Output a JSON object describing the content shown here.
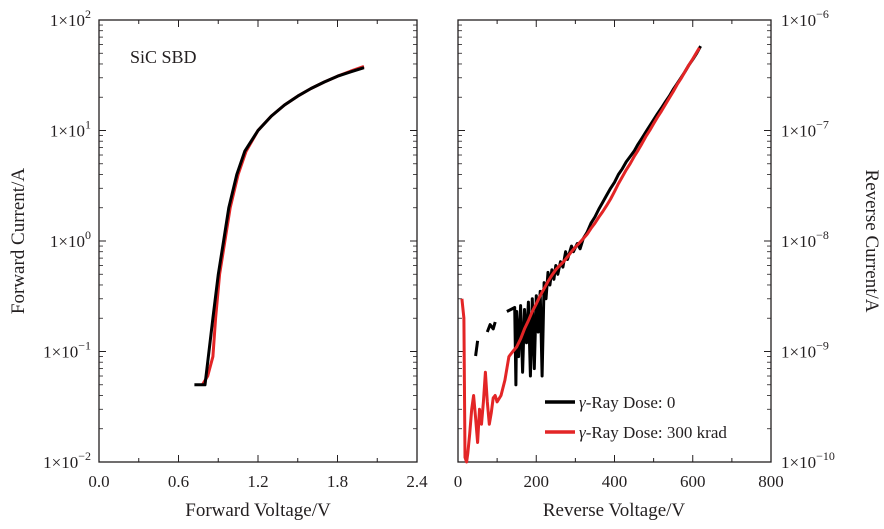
{
  "chart_data": [
    {
      "type": "line",
      "title": "",
      "annotation": "SiC SBD",
      "xlabel": "Forward Voltage/V",
      "ylabel": "Forward Current/A",
      "xlim": [
        0.0,
        2.4
      ],
      "ylim_log10": [
        -2,
        2
      ],
      "yscale": "log",
      "x_ticks": [
        0.0,
        0.6,
        1.2,
        1.8,
        2.4
      ],
      "x_tick_labels": [
        "0.0",
        "0.6",
        "1.2",
        "1.8",
        "2.4"
      ],
      "y_ticks_log10": [
        -2,
        -1,
        0,
        1,
        2
      ],
      "y_tick_labels": [
        {
          "base": "1×10",
          "exp": "−2"
        },
        {
          "base": "1×10",
          "exp": "−1"
        },
        {
          "base": "1×10",
          "exp": "0"
        },
        {
          "base": "1×10",
          "exp": "1"
        },
        {
          "base": "1×10",
          "exp": "2"
        }
      ],
      "series": [
        {
          "name": "γ-Ray Dose: 0",
          "color": "#000000",
          "points": [
            [
              0.72,
              0.05
            ],
            [
              0.8,
              0.05
            ],
            [
              0.82,
              0.08
            ],
            [
              0.86,
              0.2
            ],
            [
              0.9,
              0.5
            ],
            [
              0.94,
              1.0
            ],
            [
              0.98,
              2.0
            ],
            [
              1.04,
              4.0
            ],
            [
              1.1,
              6.5
            ],
            [
              1.2,
              10.0
            ],
            [
              1.3,
              13.5
            ],
            [
              1.4,
              17.0
            ],
            [
              1.5,
              20.5
            ],
            [
              1.6,
              24.0
            ],
            [
              1.7,
              27.5
            ],
            [
              1.8,
              31.0
            ],
            [
              1.9,
              34.0
            ],
            [
              2.0,
              37.0
            ]
          ]
        },
        {
          "name": "γ-Ray Dose: 300 krad",
          "color": "#e32526",
          "points": [
            [
              0.78,
              0.05
            ],
            [
              0.82,
              0.06
            ],
            [
              0.86,
              0.09
            ],
            [
              0.88,
              0.2
            ],
            [
              0.91,
              0.5
            ],
            [
              0.95,
              1.0
            ],
            [
              0.99,
              2.0
            ],
            [
              1.05,
              4.0
            ],
            [
              1.11,
              6.5
            ],
            [
              1.2,
              10.0
            ],
            [
              1.3,
              13.5
            ],
            [
              1.4,
              17.0
            ],
            [
              1.5,
              20.5
            ],
            [
              1.6,
              24.0
            ],
            [
              1.7,
              27.5
            ],
            [
              1.8,
              31.0
            ],
            [
              1.9,
              34.5
            ],
            [
              2.0,
              38.0
            ]
          ]
        }
      ]
    },
    {
      "type": "line",
      "title": "",
      "xlabel": "Reverse Voltage/V",
      "ylabel": "Reverse Current/A",
      "xlim": [
        0,
        800
      ],
      "ylim_log10": [
        -10,
        -6
      ],
      "yscale": "log",
      "x_ticks": [
        0,
        200,
        400,
        600,
        800
      ],
      "x_tick_labels": [
        "0",
        "200",
        "400",
        "600",
        "800"
      ],
      "y_ticks_log10": [
        -10,
        -9,
        -8,
        -7,
        -6
      ],
      "y_tick_labels": [
        {
          "base": "1×10",
          "exp": "−10"
        },
        {
          "base": "1×10",
          "exp": "−9"
        },
        {
          "base": "1×10",
          "exp": "−8"
        },
        {
          "base": "1×10",
          "exp": "−7"
        },
        {
          "base": "1×10",
          "exp": "−6"
        }
      ],
      "legend": {
        "position": "lower-right",
        "entries": [
          {
            "prefix": "γ",
            "text": "-Ray Dose: 0",
            "color": "#000000"
          },
          {
            "prefix": "γ",
            "text": "-Ray Dose: 300 krad",
            "color": "#e32526"
          }
        ]
      },
      "series": [
        {
          "name": "γ-Ray Dose: 0",
          "color": "#000000",
          "segments": [
            [
              [
                45,
                9.1e-10
              ],
              [
                50,
                1.25e-09
              ]
            ],
            [
              [
                75,
                1.5e-09
              ],
              [
                82,
                1.75e-09
              ],
              [
                90,
                1.6e-09
              ],
              [
                95,
                1.85e-09
              ]
            ],
            [
              [
                125,
                2.3e-09
              ],
              [
                140,
                2.45e-09
              ],
              [
                145,
                2.5e-09
              ],
              [
                148,
                5e-10
              ],
              [
                150,
                2.3e-09
              ],
              [
                155,
                9e-10
              ],
              [
                160,
                2.6e-09
              ],
              [
                165,
                6.5e-10
              ],
              [
                170,
                2.4e-09
              ],
              [
                175,
                1.2e-09
              ],
              [
                180,
                2.8e-09
              ],
              [
                185,
                6e-10
              ],
              [
                190,
                3e-09
              ],
              [
                195,
                7e-10
              ],
              [
                200,
                3.2e-09
              ],
              [
                205,
                1.5e-09
              ],
              [
                210,
                3.5e-09
              ],
              [
                215,
                6e-10
              ],
              [
                220,
                4.2e-09
              ],
              [
                225,
                3e-09
              ],
              [
                230,
                5.2e-09
              ],
              [
                235,
                4e-09
              ],
              [
                240,
                5.5e-09
              ],
              [
                245,
                4.5e-09
              ],
              [
                250,
                6e-09
              ],
              [
                255,
                5e-09
              ],
              [
                262,
                6.5e-09
              ],
              [
                268,
                5.8e-09
              ],
              [
                275,
                8e-09
              ],
              [
                280,
                6.8e-09
              ],
              [
                290,
                9e-09
              ],
              [
                295,
                8e-09
              ],
              [
                305,
                9.5e-09
              ],
              [
                312,
                8.5e-09
              ],
              [
                320,
                1.05e-08
              ],
              [
                330,
                1.2e-08
              ],
              [
                340,
                1.45e-08
              ],
              [
                350,
                1.65e-08
              ],
              [
                360,
                1.95e-08
              ],
              [
                370,
                2.25e-08
              ],
              [
                380,
                2.6e-08
              ],
              [
                390,
                3e-08
              ],
              [
                400,
                3.4e-08
              ],
              [
                410,
                4e-08
              ],
              [
                420,
                4.5e-08
              ],
              [
                430,
                5.2e-08
              ],
              [
                440,
                5.8e-08
              ],
              [
                450,
                6.5e-08
              ],
              [
                460,
                7.5e-08
              ],
              [
                470,
                8.5e-08
              ],
              [
                480,
                9.7e-08
              ],
              [
                490,
                1.1e-07
              ],
              [
                500,
                1.25e-07
              ],
              [
                510,
                1.42e-07
              ],
              [
                520,
                1.6e-07
              ],
              [
                530,
                1.82e-07
              ],
              [
                540,
                2.05e-07
              ],
              [
                550,
                2.35e-07
              ],
              [
                560,
                2.65e-07
              ],
              [
                570,
                3e-07
              ],
              [
                580,
                3.4e-07
              ],
              [
                590,
                3.9e-07
              ],
              [
                600,
                4.4e-07
              ],
              [
                610,
                5e-07
              ],
              [
                620,
                5.8e-07
              ]
            ]
          ]
        },
        {
          "name": "γ-Ray Dose: 300 krad",
          "color": "#e32526",
          "segments": [
            [
              [
                10,
                3e-09
              ],
              [
                15,
                2e-09
              ],
              [
                18,
                1.1e-10
              ],
              [
                22,
                1e-10
              ],
              [
                25,
                1.2e-10
              ],
              [
                30,
                1.8e-10
              ],
              [
                35,
                3e-10
              ],
              [
                40,
                4e-10
              ],
              [
                45,
                2.5e-10
              ],
              [
                50,
                1.5e-10
              ],
              [
                55,
                3e-10
              ],
              [
                60,
                2.2e-10
              ],
              [
                65,
                3.5e-10
              ],
              [
                70,
                6.5e-10
              ],
              [
                75,
                3.5e-10
              ],
              [
                80,
                2.2e-10
              ],
              [
                85,
                2.8e-10
              ],
              [
                90,
                3.8e-10
              ],
              [
                95,
                4e-10
              ],
              [
                100,
                3.5e-10
              ],
              [
                110,
                4e-10
              ],
              [
                120,
                5.5e-10
              ],
              [
                130,
                9e-10
              ],
              [
                140,
                1e-09
              ],
              [
                150,
                1.1e-09
              ],
              [
                160,
                1.3e-09
              ],
              [
                170,
                1.6e-09
              ],
              [
                180,
                1.9e-09
              ],
              [
                190,
                2.3e-09
              ],
              [
                200,
                2.7e-09
              ],
              [
                210,
                3.2e-09
              ],
              [
                220,
                3.7e-09
              ],
              [
                230,
                4.3e-09
              ],
              [
                240,
                4.9e-09
              ],
              [
                250,
                5.5e-09
              ],
              [
                260,
                6e-09
              ],
              [
                270,
                6.5e-09
              ],
              [
                280,
                7.2e-09
              ],
              [
                290,
                8e-09
              ],
              [
                300,
                8.8e-09
              ],
              [
                310,
                9.6e-09
              ],
              [
                320,
                1.05e-08
              ],
              [
                330,
                1.15e-08
              ],
              [
                340,
                1.3e-08
              ],
              [
                350,
                1.45e-08
              ],
              [
                360,
                1.65e-08
              ],
              [
                370,
                1.85e-08
              ],
              [
                380,
                2.1e-08
              ],
              [
                390,
                2.4e-08
              ],
              [
                400,
                2.8e-08
              ],
              [
                410,
                3.3e-08
              ],
              [
                420,
                3.8e-08
              ],
              [
                430,
                4.4e-08
              ],
              [
                440,
                5e-08
              ],
              [
                450,
                5.8e-08
              ],
              [
                460,
                6.6e-08
              ],
              [
                470,
                7.6e-08
              ],
              [
                480,
                8.8e-08
              ],
              [
                490,
                1e-07
              ],
              [
                500,
                1.15e-07
              ],
              [
                510,
                1.32e-07
              ],
              [
                520,
                1.5e-07
              ],
              [
                530,
                1.72e-07
              ],
              [
                540,
                1.97e-07
              ],
              [
                550,
                2.25e-07
              ],
              [
                560,
                2.6e-07
              ],
              [
                570,
                2.95e-07
              ],
              [
                580,
                3.4e-07
              ],
              [
                590,
                3.9e-07
              ],
              [
                600,
                4.45e-07
              ],
              [
                610,
                5.1e-07
              ],
              [
                617,
                5.6e-07
              ]
            ]
          ]
        }
      ]
    }
  ]
}
